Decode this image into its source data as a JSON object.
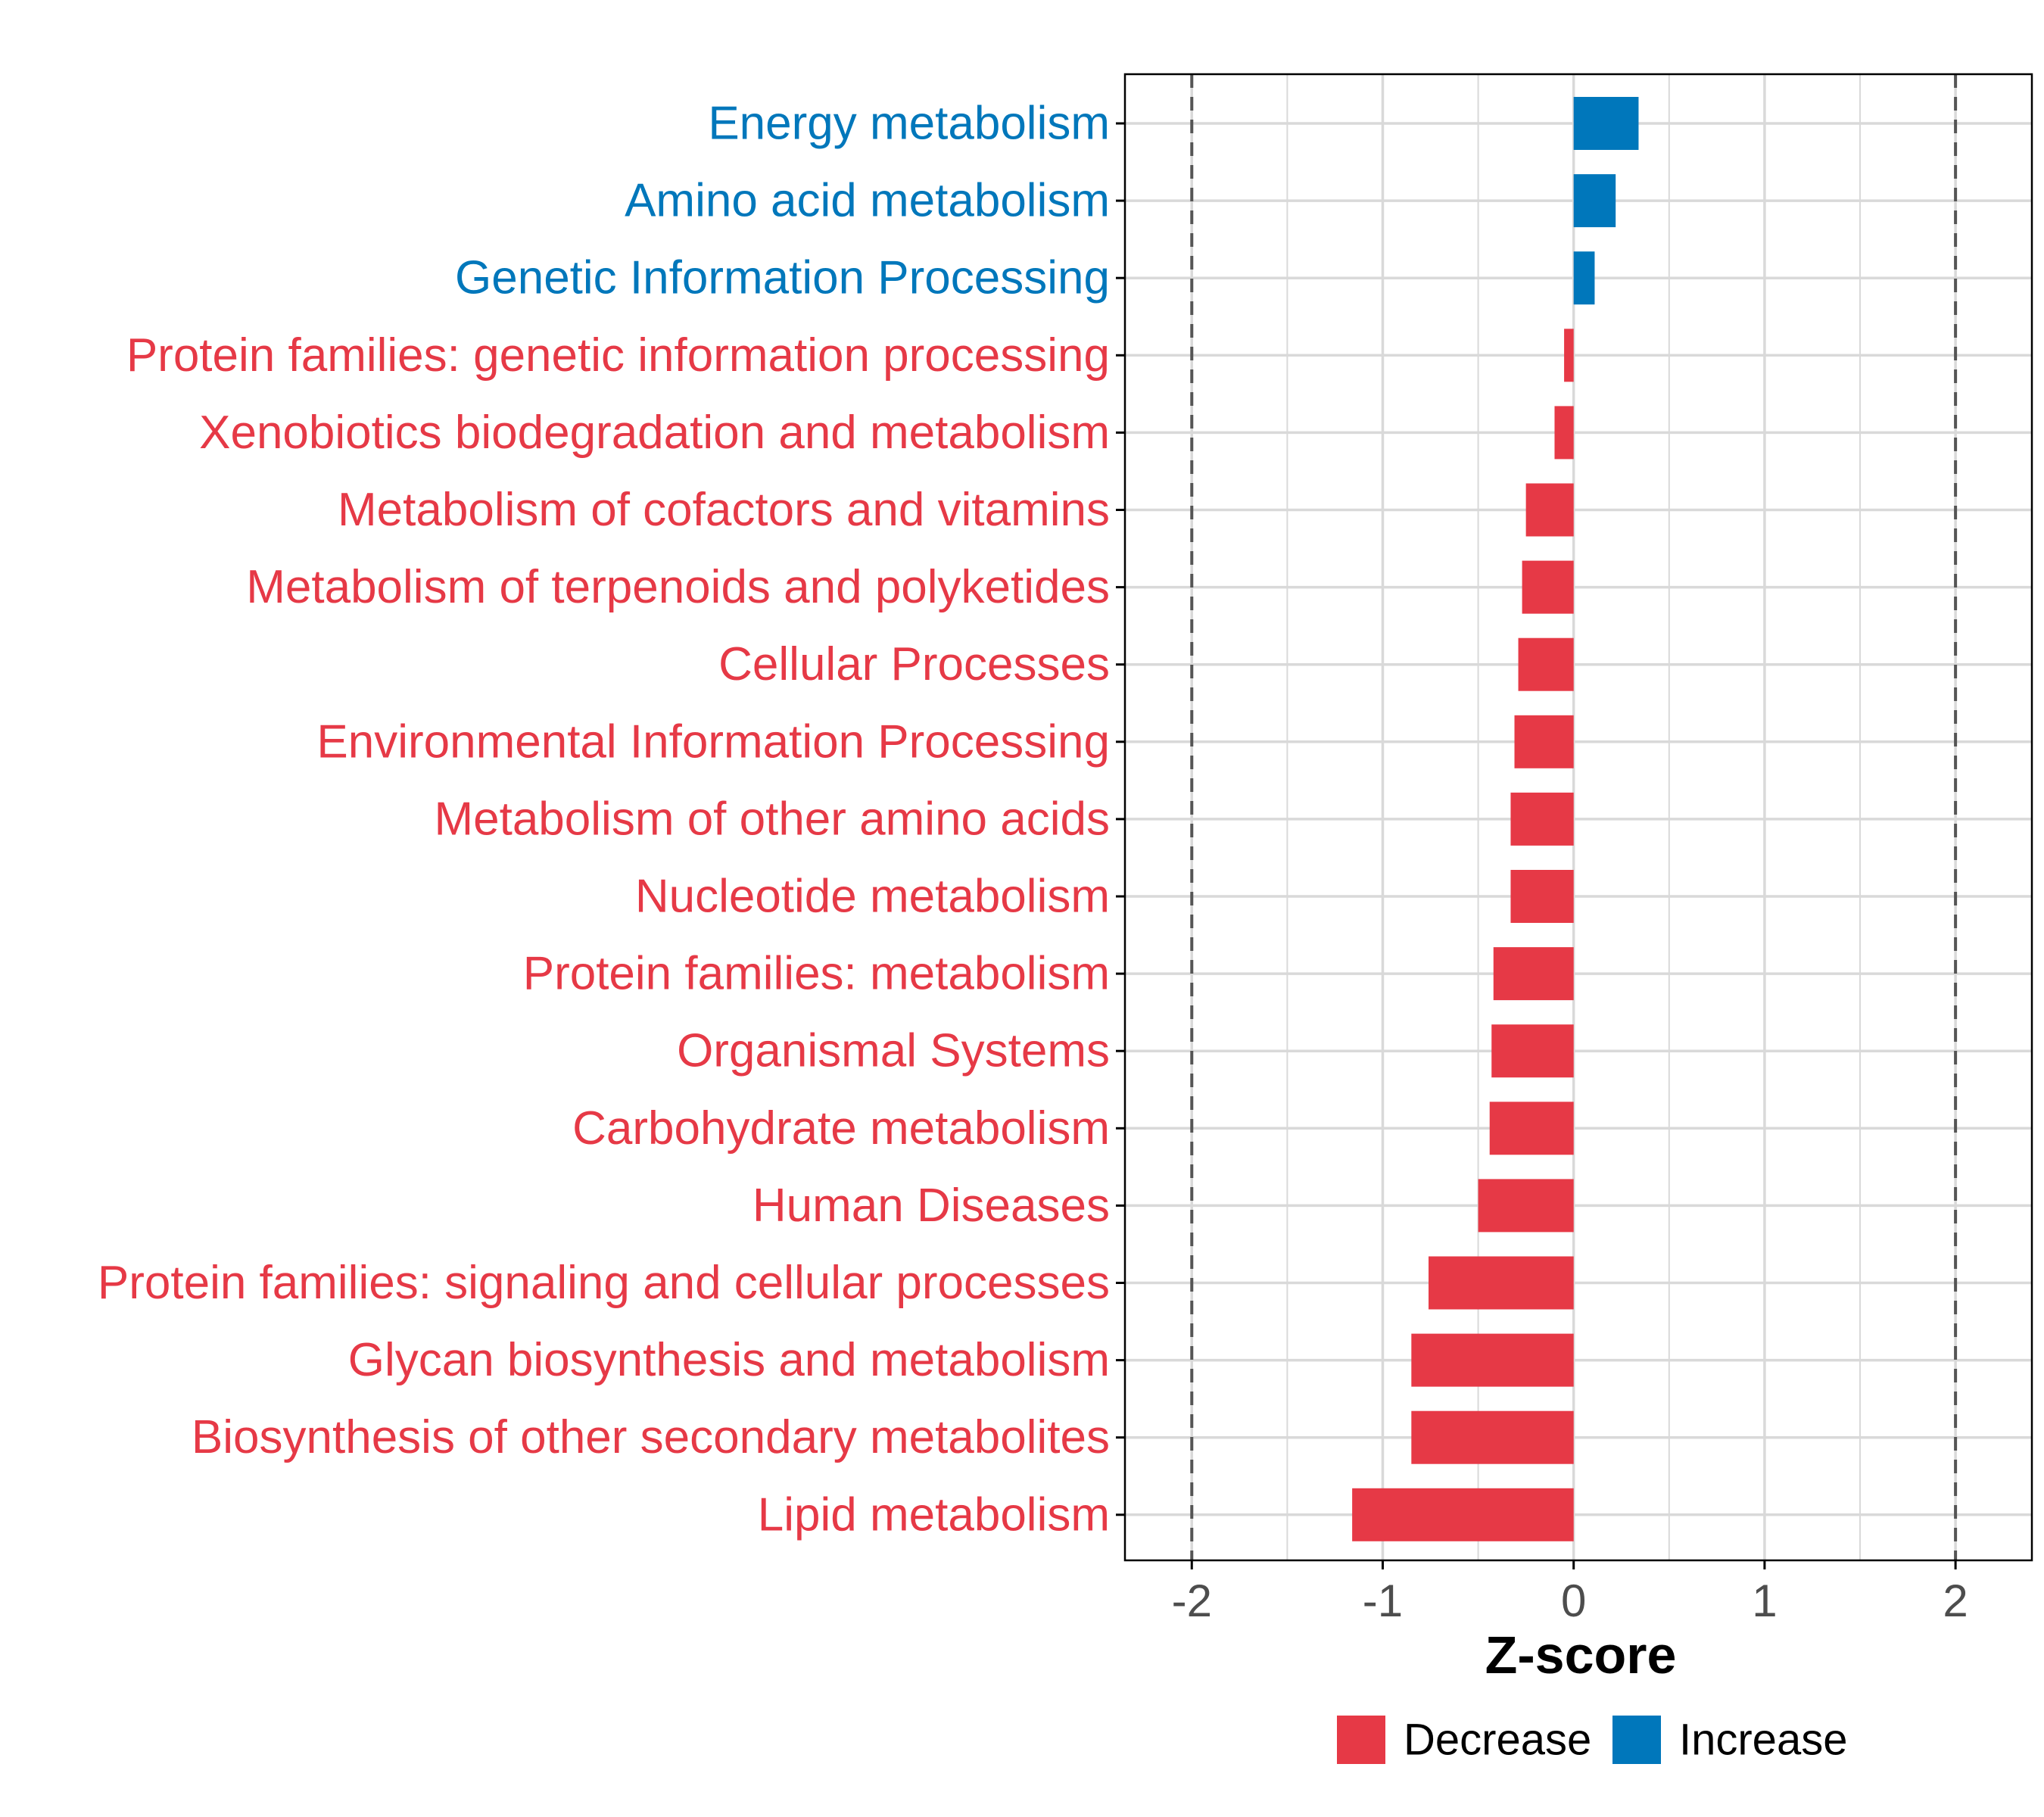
{
  "chart_data": {
    "type": "bar",
    "orientation": "horizontal",
    "title": "",
    "xlabel": "Z-score",
    "ylabel": "",
    "xlim": [
      -2.35,
      2.4
    ],
    "x_ticks": [
      -2,
      -1,
      0,
      1,
      2
    ],
    "x_tick_labels": [
      "-2",
      "-1",
      "0",
      "1",
      "2"
    ],
    "reference_lines": [
      -2,
      2
    ],
    "grid": true,
    "legend_position": "bottom",
    "categories": [
      "Energy metabolism",
      "Amino acid metabolism",
      "Genetic Information Processing",
      "Protein families: genetic information processing",
      "Xenobiotics biodegradation and metabolism",
      "Metabolism of cofactors and vitamins",
      "Metabolism of terpenoids and polyketides",
      "Cellular Processes",
      "Environmental Information Processing",
      "Metabolism of other amino acids",
      "Nucleotide metabolism",
      "Protein families: metabolism",
      "Organismal Systems",
      "Carbohydrate metabolism",
      "Human Diseases",
      "Protein families: signaling and cellular processes",
      "Glycan biosynthesis and metabolism",
      "Biosynthesis of other secondary metabolites",
      "Lipid metabolism"
    ],
    "values": [
      0.34,
      0.22,
      0.11,
      -0.05,
      -0.1,
      -0.25,
      -0.27,
      -0.29,
      -0.31,
      -0.33,
      -0.33,
      -0.42,
      -0.43,
      -0.44,
      -0.5,
      -0.76,
      -0.85,
      -0.85,
      -1.16
    ],
    "groups": [
      "Increase",
      "Increase",
      "Increase",
      "Decrease",
      "Decrease",
      "Decrease",
      "Decrease",
      "Decrease",
      "Decrease",
      "Decrease",
      "Decrease",
      "Decrease",
      "Decrease",
      "Decrease",
      "Decrease",
      "Decrease",
      "Decrease",
      "Decrease",
      "Decrease"
    ],
    "legend": [
      {
        "name": "Decrease",
        "color": "#E63946"
      },
      {
        "name": "Increase",
        "color": "#0077BB"
      }
    ]
  },
  "colors": {
    "decrease": "#E63946",
    "increase": "#0077BB",
    "grid": "#d9d9d9",
    "reference_line": "#555555",
    "axis": "#000000",
    "tick_text": "#4d4d4d"
  }
}
